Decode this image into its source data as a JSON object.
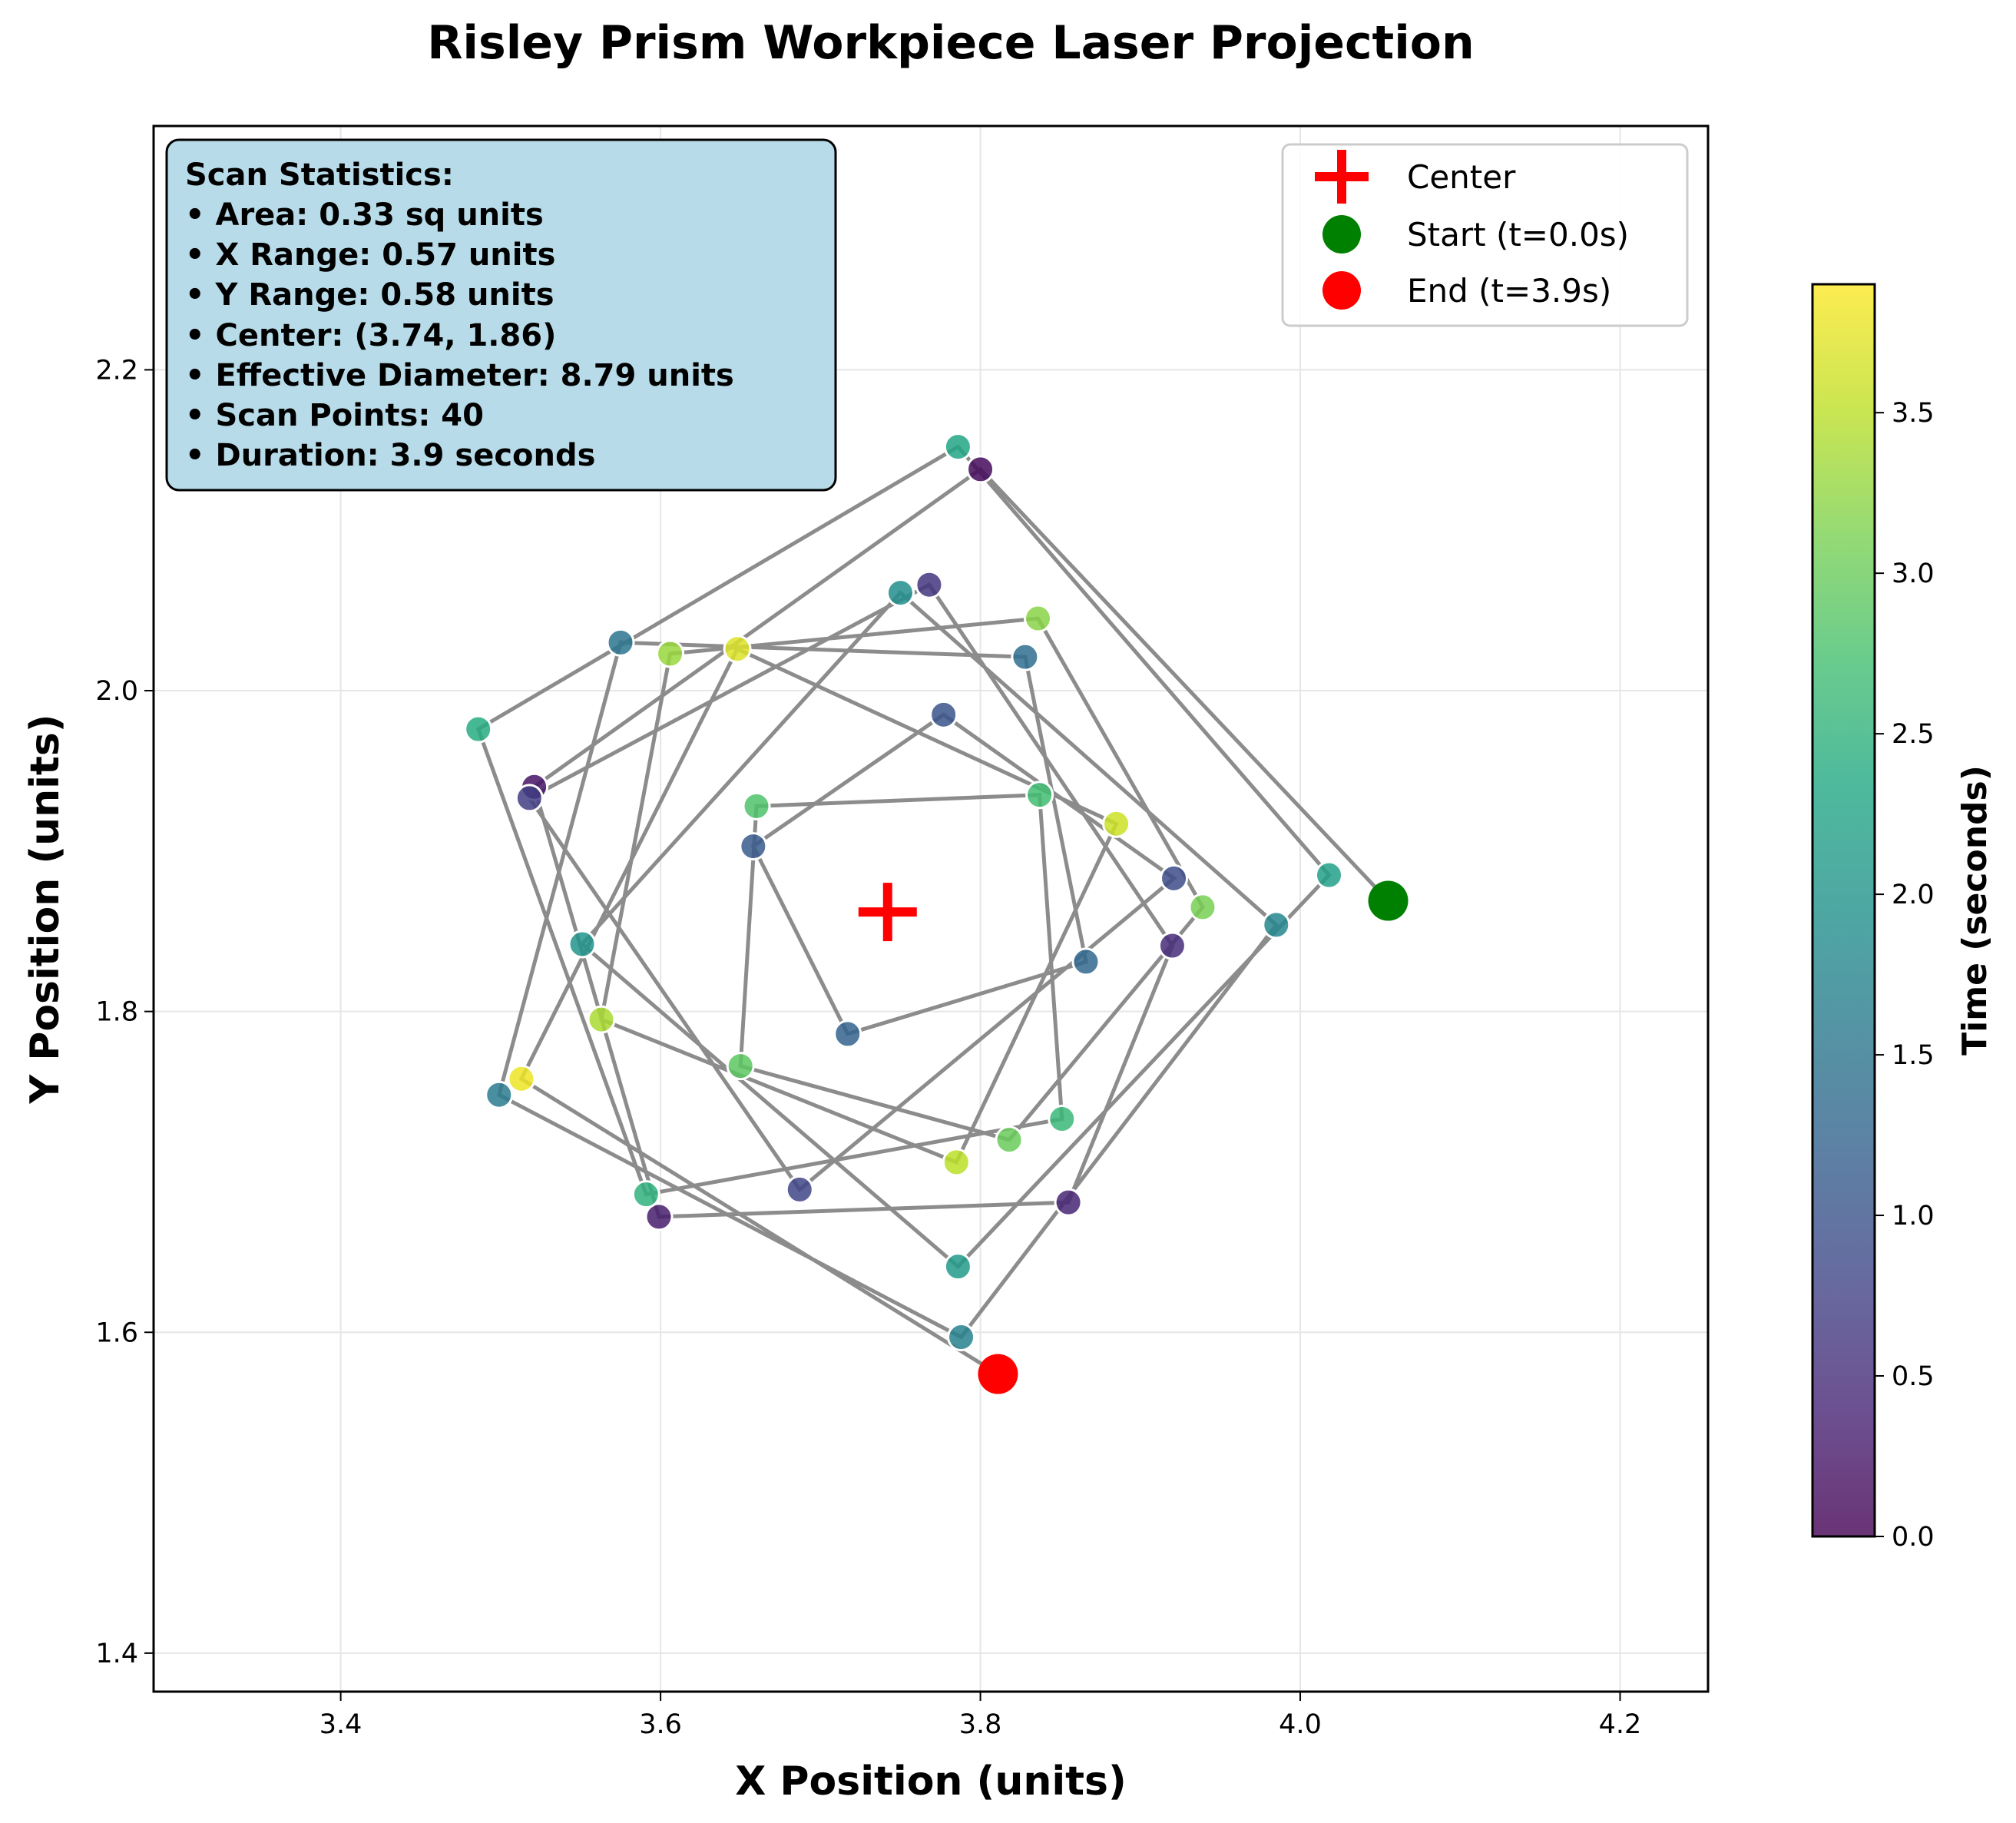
{
  "chart_data": {
    "type": "scatter",
    "title": "Risley Prism Workpiece Laser Projection",
    "xlabel": "X Position (units)",
    "ylabel": "Y Position (units)",
    "xlim": [
      3.283,
      4.255
    ],
    "ylim": [
      1.376,
      2.352
    ],
    "xticks": [
      3.4,
      3.6,
      3.8,
      4.0,
      4.2
    ],
    "yticks": [
      1.4,
      1.6,
      1.8,
      2.0,
      2.2
    ],
    "xtick_labels": [
      "3.4",
      "3.6",
      "3.8",
      "4.0",
      "4.2"
    ],
    "ytick_labels": [
      "1.4",
      "1.6",
      "1.8",
      "2.0",
      "2.2"
    ],
    "grid": true,
    "colormap": "viridis",
    "colorbar": {
      "label": "Time (seconds)",
      "range": [
        0.0,
        3.9
      ],
      "ticks": [
        0.0,
        0.5,
        1.0,
        1.5,
        2.0,
        2.5,
        3.0,
        3.5
      ],
      "tick_labels": [
        "0.0",
        "0.5",
        "1.0",
        "1.5",
        "2.0",
        "2.5",
        "3.0",
        "3.5"
      ]
    },
    "center": {
      "x": 3.742,
      "y": 1.862,
      "label": "Center",
      "color": "#ff0000"
    },
    "start": {
      "x": 4.055,
      "y": 1.869,
      "label": "Start (t=0.0s)",
      "color": "#008000"
    },
    "end": {
      "x": 3.811,
      "y": 1.574,
      "label": "End (t=3.9s)",
      "color": "#ff0000"
    },
    "line_color": "#8c8c8c",
    "legend_position": "top-right",
    "series": [
      {
        "points": [
          {
            "x": 4.055,
            "y": 1.869,
            "t": 0.0
          },
          {
            "x": 3.8,
            "y": 2.138,
            "t": 0.1
          },
          {
            "x": 3.521,
            "y": 1.94,
            "t": 0.2
          },
          {
            "x": 3.599,
            "y": 1.672,
            "t": 0.3
          },
          {
            "x": 3.855,
            "y": 1.681,
            "t": 0.4
          },
          {
            "x": 3.92,
            "y": 1.841,
            "t": 0.5
          },
          {
            "x": 3.768,
            "y": 2.066,
            "t": 0.6
          },
          {
            "x": 3.518,
            "y": 1.933,
            "t": 0.7
          },
          {
            "x": 3.687,
            "y": 1.689,
            "t": 0.8
          },
          {
            "x": 3.921,
            "y": 1.883,
            "t": 0.9
          },
          {
            "x": 3.777,
            "y": 1.985,
            "t": 1.0
          },
          {
            "x": 3.658,
            "y": 1.903,
            "t": 1.1
          },
          {
            "x": 3.717,
            "y": 1.786,
            "t": 1.2
          },
          {
            "x": 3.866,
            "y": 1.831,
            "t": 1.3
          },
          {
            "x": 3.828,
            "y": 2.021,
            "t": 1.4
          },
          {
            "x": 3.575,
            "y": 2.03,
            "t": 1.5
          },
          {
            "x": 3.499,
            "y": 1.748,
            "t": 1.6
          },
          {
            "x": 3.788,
            "y": 1.597,
            "t": 1.7
          },
          {
            "x": 3.985,
            "y": 1.854,
            "t": 1.8
          },
          {
            "x": 3.75,
            "y": 2.061,
            "t": 1.9
          },
          {
            "x": 3.551,
            "y": 1.842,
            "t": 2.0
          },
          {
            "x": 3.786,
            "y": 1.641,
            "t": 2.1
          },
          {
            "x": 4.018,
            "y": 1.885,
            "t": 2.2
          },
          {
            "x": 3.786,
            "y": 2.152,
            "t": 2.3
          },
          {
            "x": 3.486,
            "y": 1.976,
            "t": 2.4
          },
          {
            "x": 3.591,
            "y": 1.686,
            "t": 2.5
          },
          {
            "x": 3.851,
            "y": 1.733,
            "t": 2.6
          },
          {
            "x": 3.837,
            "y": 1.935,
            "t": 2.7
          },
          {
            "x": 3.66,
            "y": 1.928,
            "t": 2.8
          },
          {
            "x": 3.65,
            "y": 1.766,
            "t": 2.9
          },
          {
            "x": 3.818,
            "y": 1.72,
            "t": 3.0
          },
          {
            "x": 3.939,
            "y": 1.865,
            "t": 3.1
          },
          {
            "x": 3.836,
            "y": 2.045,
            "t": 3.2
          },
          {
            "x": 3.606,
            "y": 2.023,
            "t": 3.3
          },
          {
            "x": 3.563,
            "y": 1.795,
            "t": 3.4
          },
          {
            "x": 3.785,
            "y": 1.706,
            "t": 3.5
          },
          {
            "x": 3.885,
            "y": 1.917,
            "t": 3.6
          },
          {
            "x": 3.648,
            "y": 2.026,
            "t": 3.7
          },
          {
            "x": 3.513,
            "y": 1.758,
            "t": 3.8
          },
          {
            "x": 3.811,
            "y": 1.574,
            "t": 3.9
          }
        ]
      }
    ]
  },
  "stats_box": {
    "lines": [
      "Scan Statistics:",
      "• Area: 0.33 sq units",
      "• X Range: 0.57 units",
      "• Y Range: 0.58 units",
      "• Center: (3.74, 1.86)",
      "• Effective Diameter: 8.79 units",
      "• Scan Points: 40",
      "• Duration: 3.9 seconds"
    ],
    "background_color": "#add8e6"
  }
}
